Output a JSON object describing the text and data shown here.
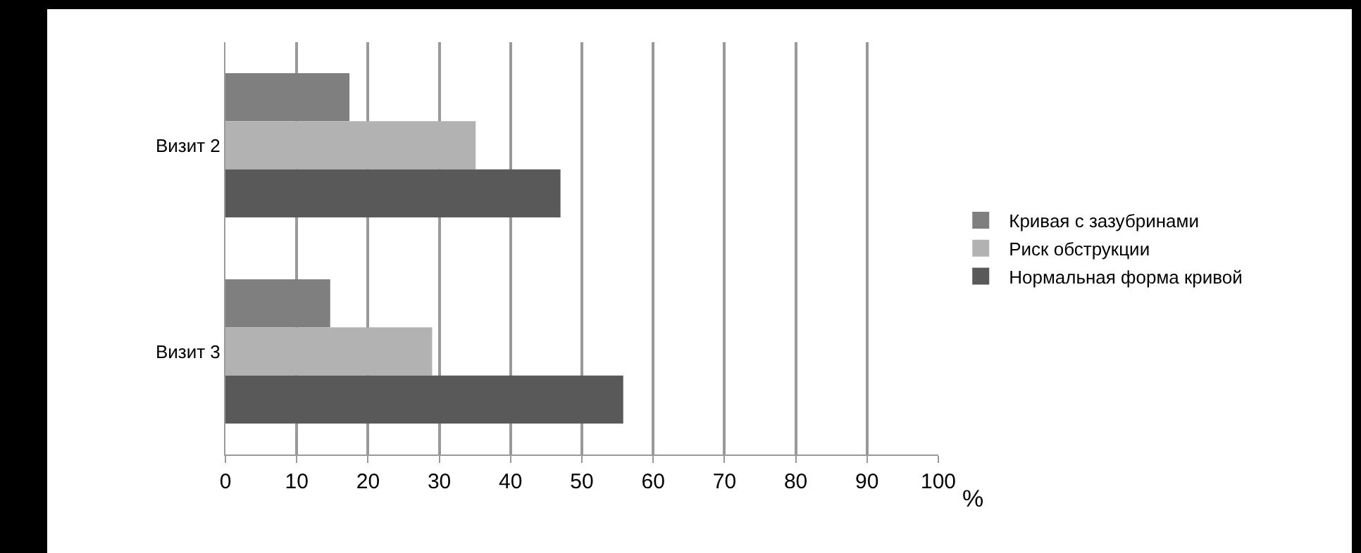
{
  "chart_data": {
    "type": "bar",
    "orientation": "horizontal",
    "categories": [
      "Визит 2",
      "Визит 3"
    ],
    "series": [
      {
        "name": "Кривая с зазубринами",
        "color": "#7f7f7f",
        "values": [
          17.4,
          14.7
        ]
      },
      {
        "name": "Риск обструкции",
        "color": "#b2b2b2",
        "values": [
          35.1,
          29.0
        ]
      },
      {
        "name": "Нормальная форма кривой",
        "color": "#595959",
        "values": [
          47.0,
          55.8
        ]
      }
    ],
    "xlabel": "%",
    "xlim": [
      0,
      100
    ],
    "xticks": [
      0,
      10,
      20,
      30,
      40,
      50,
      60,
      70,
      80,
      90,
      100
    ],
    "grid": "x",
    "legend": "right"
  }
}
